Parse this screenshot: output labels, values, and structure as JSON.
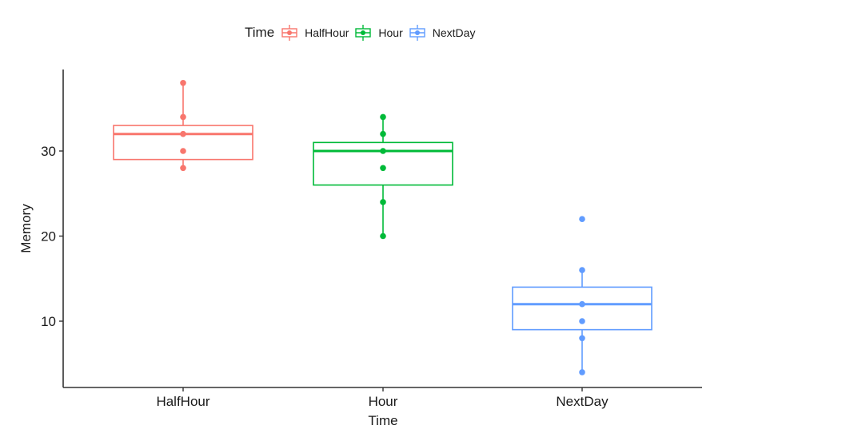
{
  "chart_data": {
    "type": "box",
    "title": "",
    "xlabel": "Time",
    "ylabel": "Memory",
    "ylim": [
      2.5,
      39.5
    ],
    "yticks": [
      10,
      20,
      30
    ],
    "categories": [
      "HalfHour",
      "Hour",
      "NextDay"
    ],
    "legend": {
      "title": "Time",
      "position": "top",
      "entries": [
        "HalfHour",
        "Hour",
        "NextDay"
      ]
    },
    "colors": {
      "HalfHour": "#F8766D",
      "Hour": "#00BA38",
      "NextDay": "#619CFF"
    },
    "series": [
      {
        "name": "HalfHour",
        "whisker_low": 28,
        "q1": 29,
        "median": 32,
        "q3": 33,
        "whisker_high": 38,
        "outliers": [],
        "points": [
          38,
          34,
          32,
          30,
          28
        ]
      },
      {
        "name": "Hour",
        "whisker_low": 20,
        "q1": 26,
        "median": 30,
        "q3": 31,
        "whisker_high": 34,
        "outliers": [],
        "points": [
          34,
          32,
          30,
          28,
          24,
          20
        ]
      },
      {
        "name": "NextDay",
        "whisker_low": 4,
        "q1": 9,
        "median": 12,
        "q3": 14,
        "whisker_high": 16,
        "outliers": [
          22
        ],
        "points": [
          22,
          16,
          12,
          10,
          8,
          4
        ]
      }
    ],
    "grid": false
  },
  "legend": {
    "title": "Time",
    "items": [
      {
        "label": "HalfHour",
        "color": "#F8766D"
      },
      {
        "label": "Hour",
        "color": "#00BA38"
      },
      {
        "label": "NextDay",
        "color": "#619CFF"
      }
    ]
  },
  "axes": {
    "x_title": "Time",
    "y_title": "Memory"
  }
}
